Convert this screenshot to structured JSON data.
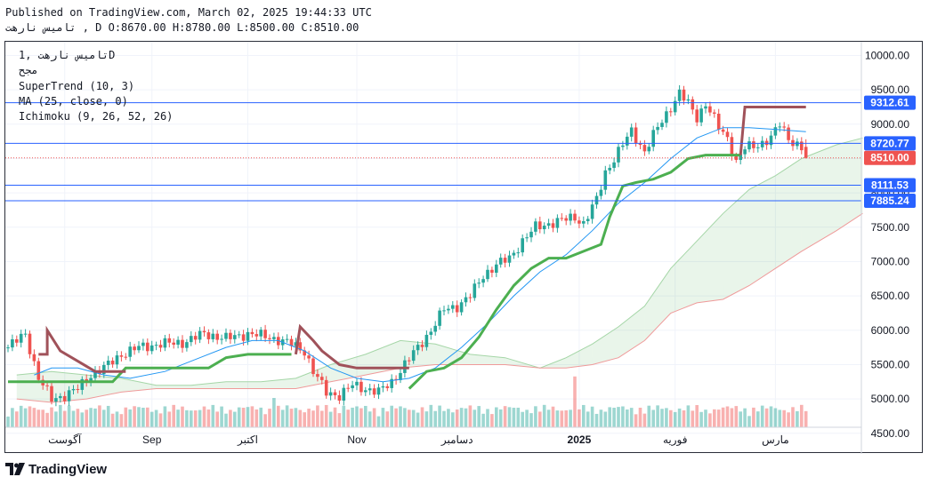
{
  "header": {
    "published": "Published on TradingView.com, March 02, 2025 19:44:33 UTC",
    "ohlc": "تامیس نارهت , D O:8670.00 H:8780.00 L:8500.00 C:8510.00"
  },
  "legend": {
    "symbol": "تامیس نارهت ,1D",
    "exchange": "مجح",
    "supertrend": "SuperTrend (10, 3)",
    "ma": "MA (25, close, 0)",
    "ichimoku": "Ichimoku (9, 26, 52, 26)"
  },
  "brand": {
    "logo_text": "TradingView"
  },
  "colors": {
    "up": "#26a69a",
    "down": "#ef5350",
    "supertrend_up": "#4caf50",
    "supertrend_down": "#a0525a",
    "ma": "#2196f3",
    "hline": "#2962ff",
    "cloud_up": "#4caf50",
    "cloud_down": "#ef5350"
  },
  "chart_data": {
    "type": "candlestick",
    "title": "تامیس نارهت , 1D",
    "ylim": [
      4200,
      10200
    ],
    "y_ticks": [
      4500,
      5000,
      5500,
      6000,
      6500,
      7000,
      7500,
      8000,
      8500,
      9000,
      9500,
      10000
    ],
    "x_labels": [
      "آگوست",
      "Sep",
      "اکتبر",
      "Nov",
      "دسامبر",
      "2025",
      "فوریه",
      "مارس"
    ],
    "x_label_bar": [
      13,
      33,
      55,
      80,
      103,
      131,
      153,
      176
    ],
    "price_labels": [
      {
        "value": 9312.61,
        "label": "9312.61",
        "kind": "line"
      },
      {
        "value": 8720.77,
        "label": "8720.77",
        "kind": "line"
      },
      {
        "value": 8510.0,
        "label": "8510.00",
        "kind": "last"
      },
      {
        "value": 8111.53,
        "label": "8111.53",
        "kind": "line"
      },
      {
        "value": 7885.24,
        "label": "7885.24",
        "kind": "line"
      }
    ],
    "ohlc_last": {
      "open": 8670.0,
      "high": 8780.0,
      "low": 8500.0,
      "close": 8510.0
    },
    "anchors": [
      [
        0,
        5750
      ],
      [
        4,
        5950
      ],
      [
        7,
        5300
      ],
      [
        10,
        5000
      ],
      [
        13,
        5050
      ],
      [
        16,
        5150
      ],
      [
        19,
        5350
      ],
      [
        22,
        5450
      ],
      [
        26,
        5650
      ],
      [
        30,
        5750
      ],
      [
        35,
        5800
      ],
      [
        40,
        5820
      ],
      [
        45,
        5950
      ],
      [
        50,
        5880
      ],
      [
        55,
        5950
      ],
      [
        60,
        5900
      ],
      [
        65,
        5800
      ],
      [
        68,
        5700
      ],
      [
        70,
        5400
      ],
      [
        73,
        5100
      ],
      [
        76,
        5050
      ],
      [
        79,
        5200
      ],
      [
        82,
        5150
      ],
      [
        85,
        5100
      ],
      [
        88,
        5250
      ],
      [
        91,
        5500
      ],
      [
        94,
        5750
      ],
      [
        97,
        6000
      ],
      [
        100,
        6300
      ],
      [
        103,
        6350
      ],
      [
        106,
        6500
      ],
      [
        109,
        6800
      ],
      [
        112,
        6950
      ],
      [
        115,
        7050
      ],
      [
        118,
        7300
      ],
      [
        121,
        7500
      ],
      [
        124,
        7550
      ],
      [
        127,
        7600
      ],
      [
        130,
        7650
      ],
      [
        132,
        7550
      ],
      [
        135,
        7900
      ],
      [
        137,
        8300
      ],
      [
        140,
        8600
      ],
      [
        143,
        8900
      ],
      [
        146,
        8600
      ],
      [
        149,
        8950
      ],
      [
        152,
        9250
      ],
      [
        154,
        9450
      ],
      [
        156,
        9300
      ],
      [
        158,
        9100
      ],
      [
        160,
        9300
      ],
      [
        163,
        8950
      ],
      [
        165,
        8800
      ],
      [
        167,
        8450
      ],
      [
        169,
        8650
      ],
      [
        172,
        8700
      ],
      [
        175,
        8800
      ],
      [
        177,
        9000
      ],
      [
        179,
        8800
      ],
      [
        182,
        8650
      ],
      [
        183,
        8510
      ]
    ],
    "ma": [
      [
        6,
        5350
      ],
      [
        10,
        5450
      ],
      [
        16,
        5450
      ],
      [
        22,
        5350
      ],
      [
        28,
        5300
      ],
      [
        36,
        5400
      ],
      [
        44,
        5600
      ],
      [
        50,
        5750
      ],
      [
        56,
        5850
      ],
      [
        62,
        5850
      ],
      [
        68,
        5700
      ],
      [
        74,
        5450
      ],
      [
        80,
        5300
      ],
      [
        86,
        5250
      ],
      [
        92,
        5300
      ],
      [
        98,
        5450
      ],
      [
        104,
        5750
      ],
      [
        110,
        6100
      ],
      [
        116,
        6500
      ],
      [
        122,
        6850
      ],
      [
        128,
        7100
      ],
      [
        134,
        7450
      ],
      [
        140,
        7850
      ],
      [
        146,
        8150
      ],
      [
        152,
        8500
      ],
      [
        158,
        8800
      ],
      [
        164,
        8950
      ],
      [
        170,
        8950
      ],
      [
        177,
        8920
      ],
      [
        183,
        8890
      ]
    ],
    "supertrend_up": [
      [
        0,
        5250
      ],
      [
        6,
        5250
      ],
      [
        12,
        5250
      ],
      [
        18,
        5250
      ],
      [
        24,
        5250
      ],
      [
        27,
        5450
      ],
      [
        33,
        5450
      ],
      [
        40,
        5450
      ],
      [
        46,
        5450
      ],
      [
        50,
        5600
      ],
      [
        55,
        5650
      ],
      [
        60,
        5650
      ],
      [
        65,
        5650
      ],
      [
        null,
        null
      ],
      [
        92,
        5150
      ],
      [
        96,
        5400
      ],
      [
        100,
        5450
      ],
      [
        104,
        5600
      ],
      [
        108,
        5900
      ],
      [
        112,
        6300
      ],
      [
        116,
        6650
      ],
      [
        120,
        6900
      ],
      [
        124,
        7050
      ],
      [
        128,
        7050
      ],
      [
        132,
        7150
      ],
      [
        136,
        7250
      ],
      [
        138,
        7650
      ],
      [
        141,
        8100
      ],
      [
        144,
        8150
      ],
      [
        148,
        8200
      ],
      [
        152,
        8300
      ],
      [
        156,
        8500
      ],
      [
        160,
        8550
      ],
      [
        164,
        8550
      ],
      [
        168,
        8550
      ]
    ],
    "supertrend_down": [
      [
        7,
        5650
      ],
      [
        9,
        5650
      ],
      [
        9,
        6000
      ],
      [
        12,
        5700
      ],
      [
        16,
        5550
      ],
      [
        20,
        5400
      ],
      [
        24,
        5400
      ],
      [
        27,
        5400
      ],
      [
        null,
        null
      ],
      [
        66,
        5650
      ],
      [
        67,
        6050
      ],
      [
        70,
        5850
      ],
      [
        72,
        5700
      ],
      [
        76,
        5500
      ],
      [
        80,
        5450
      ],
      [
        86,
        5450
      ],
      [
        92,
        5450
      ],
      [
        null,
        null
      ],
      [
        168,
        8550
      ],
      [
        169,
        9250
      ],
      [
        183,
        9250
      ]
    ],
    "cloud_a": [
      [
        2,
        5350
      ],
      [
        10,
        5400
      ],
      [
        18,
        5350
      ],
      [
        26,
        5300
      ],
      [
        34,
        5200
      ],
      [
        42,
        5200
      ],
      [
        50,
        5250
      ],
      [
        58,
        5250
      ],
      [
        66,
        5300
      ],
      [
        74,
        5500
      ],
      [
        82,
        5650
      ],
      [
        90,
        5850
      ],
      [
        98,
        5800
      ],
      [
        106,
        5650
      ],
      [
        114,
        5600
      ],
      [
        122,
        5450
      ],
      [
        128,
        5600
      ],
      [
        134,
        5800
      ],
      [
        140,
        6050
      ],
      [
        146,
        6350
      ],
      [
        152,
        6900
      ],
      [
        158,
        7300
      ],
      [
        164,
        7700
      ],
      [
        170,
        8050
      ],
      [
        176,
        8250
      ],
      [
        182,
        8500
      ],
      [
        190,
        8700
      ],
      [
        196,
        8800
      ]
    ],
    "cloud_b": [
      [
        2,
        5000
      ],
      [
        10,
        4950
      ],
      [
        18,
        5000
      ],
      [
        26,
        5100
      ],
      [
        34,
        5150
      ],
      [
        42,
        5150
      ],
      [
        50,
        5150
      ],
      [
        58,
        5150
      ],
      [
        66,
        5150
      ],
      [
        74,
        5250
      ],
      [
        82,
        5350
      ],
      [
        90,
        5450
      ],
      [
        98,
        5500
      ],
      [
        106,
        5500
      ],
      [
        114,
        5500
      ],
      [
        122,
        5450
      ],
      [
        128,
        5450
      ],
      [
        134,
        5500
      ],
      [
        140,
        5600
      ],
      [
        146,
        5850
      ],
      [
        152,
        6250
      ],
      [
        158,
        6400
      ],
      [
        164,
        6450
      ],
      [
        170,
        6650
      ],
      [
        176,
        6900
      ],
      [
        182,
        7150
      ],
      [
        190,
        7450
      ],
      [
        196,
        7700
      ]
    ],
    "volume_spikes": [
      [
        25,
        0.8
      ],
      [
        61,
        1.5
      ],
      [
        77,
        1.1
      ],
      [
        130,
        2.6
      ],
      [
        145,
        1.0
      ],
      [
        160,
        0.9
      ]
    ]
  }
}
